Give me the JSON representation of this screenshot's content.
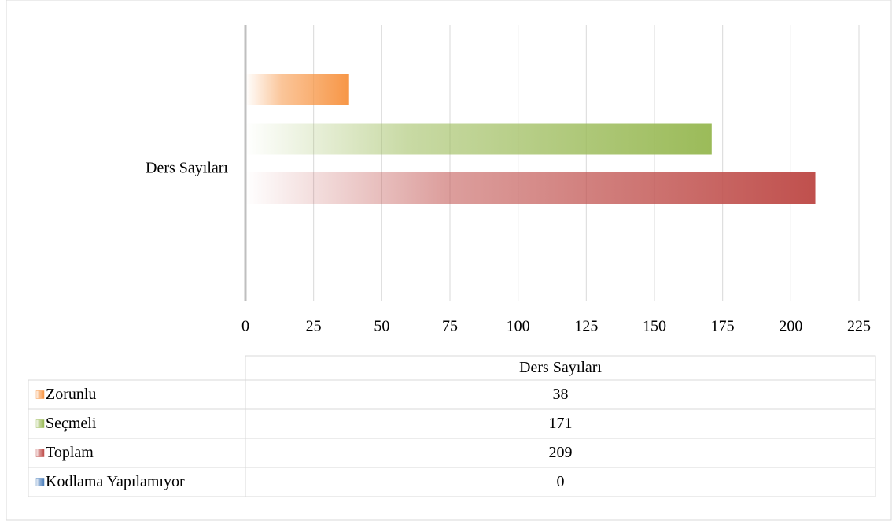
{
  "chart_data": {
    "type": "bar",
    "orientation": "horizontal",
    "categories": [
      "Ders Sayıları"
    ],
    "series": [
      {
        "name": "Zorunlu",
        "color": "#f79646",
        "values": [
          38
        ]
      },
      {
        "name": "Seçmeli",
        "color": "#9bbb59",
        "values": [
          171
        ]
      },
      {
        "name": "Toplam",
        "color": "#c0504d",
        "values": [
          209
        ]
      },
      {
        "name": "Kodlama Yapılamıyor",
        "color": "#4f81bd",
        "values": [
          0
        ]
      }
    ],
    "xlim": [
      0,
      225
    ],
    "xticks": [
      0,
      25,
      50,
      75,
      100,
      125,
      150,
      175,
      200,
      225
    ],
    "grid": true,
    "data_table": true
  }
}
